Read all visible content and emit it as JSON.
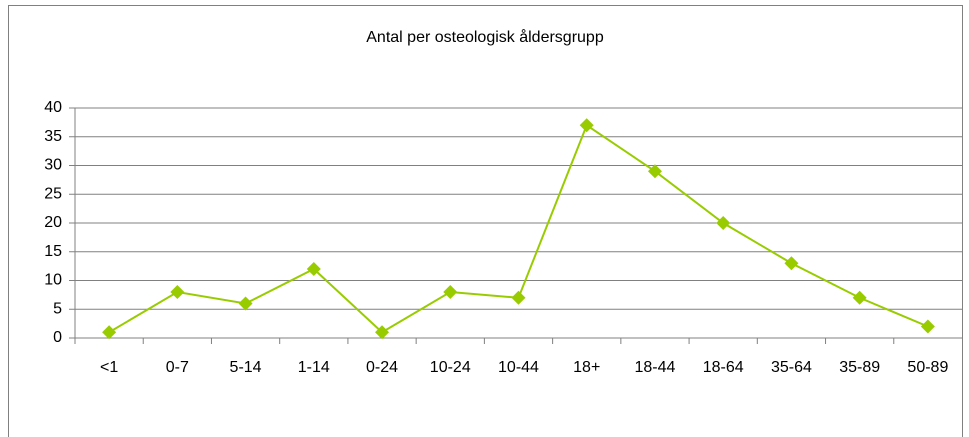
{
  "chart_data": {
    "type": "line",
    "title": "Antal per osteologisk åldersgrupp",
    "categories": [
      "<1",
      "0-7",
      "5-14",
      "1-14",
      "0-24",
      "10-24",
      "10-44",
      "18+",
      "18-44",
      "18-64",
      "35-64",
      "35-89",
      "50-89"
    ],
    "series": [
      {
        "name": "Antal",
        "color": "#99cc00",
        "values": [
          1,
          8,
          6,
          12,
          1,
          8,
          7,
          37,
          29,
          20,
          13,
          7,
          2
        ]
      }
    ],
    "ylim": [
      0,
      40
    ],
    "yticks": [
      0,
      5,
      10,
      15,
      20,
      25,
      30,
      35,
      40
    ],
    "grid": true
  }
}
